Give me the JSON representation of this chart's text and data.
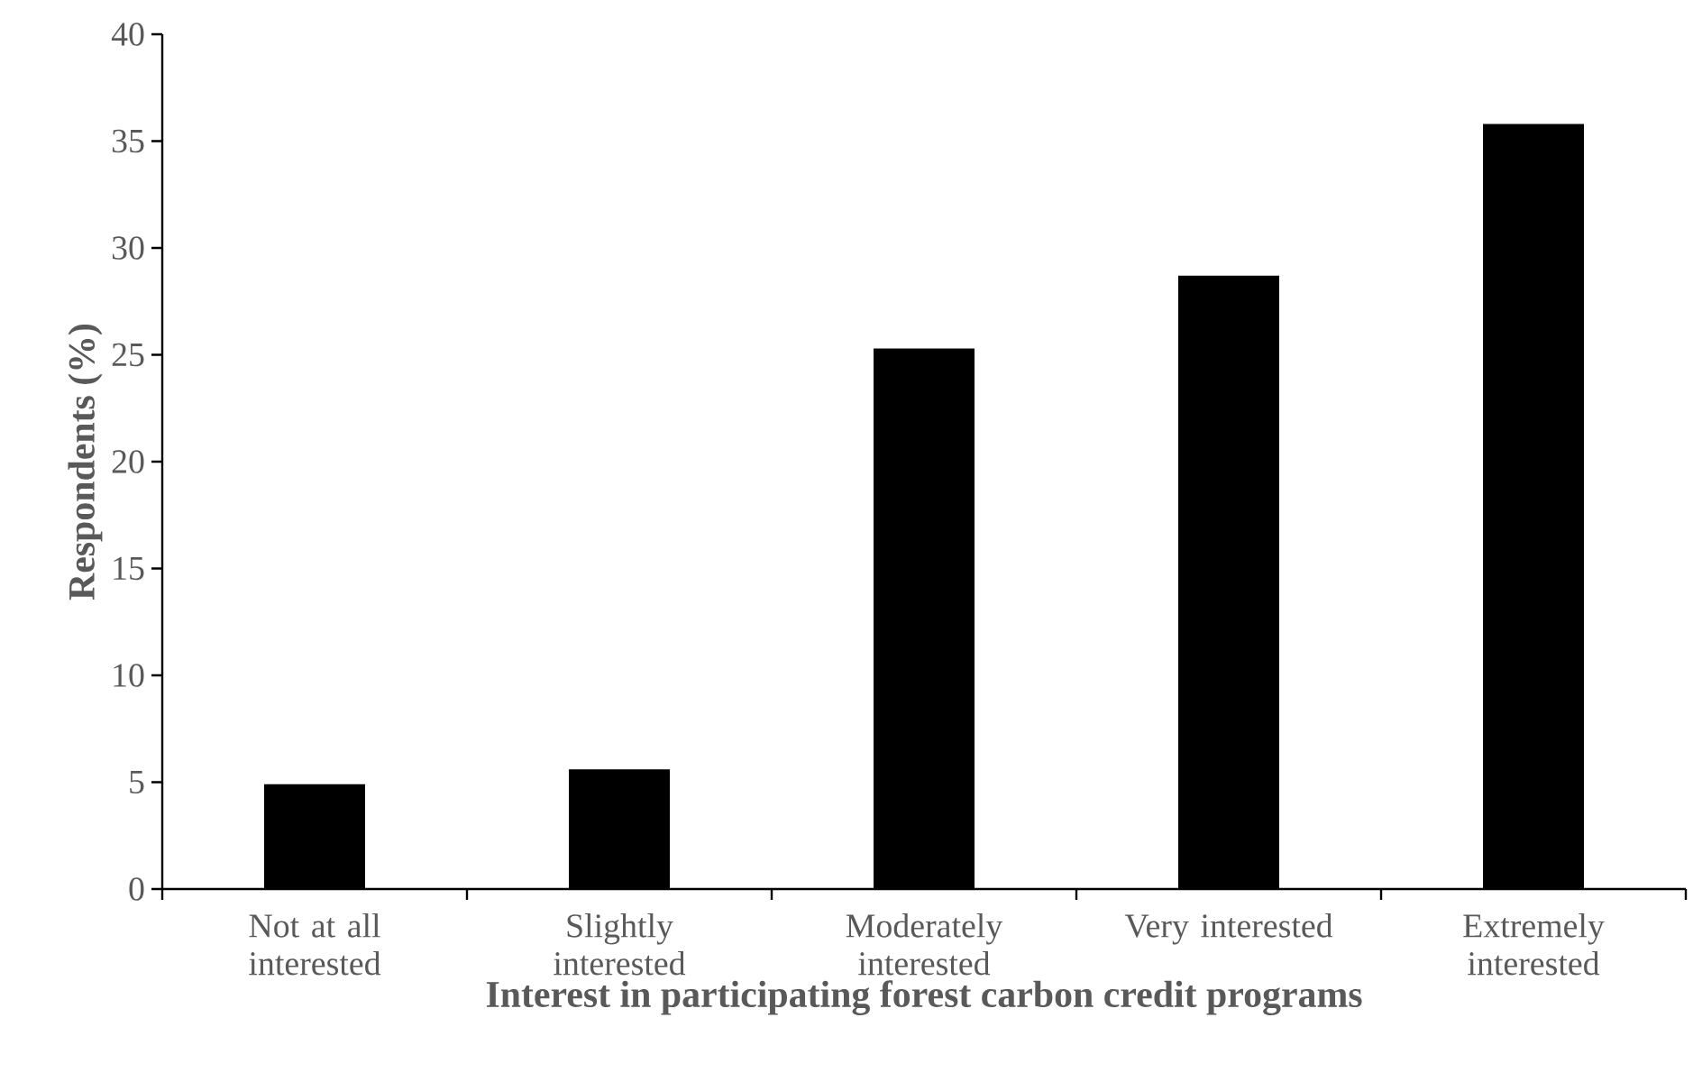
{
  "chart_data": {
    "type": "bar",
    "categories": [
      "Not at all interested",
      "Slightly interested",
      "Moderately interested",
      "Very interested",
      "Extremely interested"
    ],
    "values": [
      4.9,
      5.6,
      25.3,
      28.7,
      35.8
    ],
    "color": "#000000",
    "xlabel": "Interest in participating forest carbon credit programs",
    "ylabel": "Respondents (%)",
    "ylim": [
      0,
      40
    ],
    "yticks": [
      0,
      5,
      10,
      15,
      20,
      25,
      30,
      35,
      40
    ]
  }
}
